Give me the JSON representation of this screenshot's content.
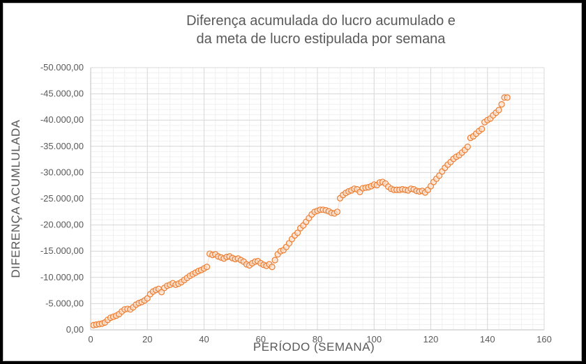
{
  "chart_data": {
    "type": "scatter",
    "title": [
      "Diferença acumulada do lucro acumulado e",
      "da meta de lucro estipulada por semana"
    ],
    "xlabel": "PERÍODO (SEMANA)",
    "ylabel": "DIFERENÇA ACUMLULADA",
    "xlim": [
      0,
      160
    ],
    "ylim": [
      0,
      -50000
    ],
    "x_ticks": [
      0,
      20,
      40,
      60,
      80,
      100,
      120,
      140,
      160
    ],
    "x_tick_labels": [
      "0",
      "20",
      "40",
      "60",
      "80",
      "100",
      "120",
      "140",
      "160"
    ],
    "y_ticks": [
      0,
      -5000,
      -10000,
      -15000,
      -20000,
      -25000,
      -30000,
      -35000,
      -40000,
      -45000,
      -50000
    ],
    "y_tick_labels": [
      "0,00",
      "-5.000,00",
      "-10.000,00",
      "-15.000,00",
      "-20.000,00",
      "-25.000,00",
      "-30.000,00",
      "-35.000,00",
      "-40.000,00",
      "-45.000,00",
      "-50.000,00"
    ],
    "grid": true,
    "marker_color": "#ED7D31",
    "series": [
      {
        "x": [
          1,
          2,
          3,
          4,
          5,
          6,
          7,
          8,
          9,
          10,
          11,
          12,
          13,
          14,
          15,
          16,
          17,
          18,
          19,
          20,
          21,
          22,
          23,
          24,
          25,
          26,
          27,
          28,
          29,
          30,
          31,
          32,
          33,
          34,
          35,
          36,
          37,
          38,
          39,
          40,
          41,
          42,
          43,
          44,
          45,
          46,
          47,
          48,
          49,
          50,
          51,
          52,
          53,
          54,
          55,
          56,
          57,
          58,
          59,
          60,
          61,
          62,
          63,
          64,
          65,
          66,
          67,
          68,
          69,
          70,
          71,
          72,
          73,
          74,
          75,
          76,
          77,
          78,
          79,
          80,
          81,
          82,
          83,
          84,
          85,
          86,
          87,
          88,
          89,
          90,
          91,
          92,
          93,
          94,
          95,
          96,
          97,
          98,
          99,
          100,
          101,
          102,
          103,
          104,
          105,
          106,
          107,
          108,
          109,
          110,
          111,
          112,
          113,
          114,
          115,
          116,
          117,
          118,
          119,
          120,
          121,
          122,
          123,
          124,
          125,
          126,
          127,
          128,
          129,
          130,
          131,
          132,
          133,
          134,
          135,
          136,
          137,
          138,
          139,
          140,
          141,
          142,
          143,
          144,
          145,
          146,
          147
        ],
        "y": [
          -900,
          -1000,
          -1100,
          -1200,
          -1400,
          -1900,
          -2300,
          -2500,
          -2700,
          -3000,
          -3500,
          -3900,
          -4000,
          -3900,
          -4300,
          -4800,
          -5100,
          -5300,
          -5600,
          -6000,
          -6800,
          -7300,
          -7600,
          -7800,
          -7200,
          -8000,
          -8400,
          -8600,
          -8900,
          -8600,
          -8800,
          -9100,
          -9500,
          -9900,
          -10300,
          -10600,
          -10900,
          -11200,
          -11400,
          -11700,
          -12000,
          -14500,
          -14300,
          -14400,
          -14000,
          -13800,
          -13600,
          -13900,
          -14000,
          -13700,
          -13500,
          -13600,
          -13300,
          -13000,
          -12500,
          -12300,
          -12700,
          -13000,
          -13100,
          -12700,
          -12400,
          -12200,
          -12500,
          -12000,
          -13300,
          -14400,
          -15000,
          -15200,
          -15800,
          -16500,
          -17300,
          -18000,
          -18500,
          -19400,
          -19900,
          -20600,
          -21300,
          -22000,
          -22500,
          -22700,
          -22900,
          -22900,
          -22800,
          -22600,
          -22300,
          -22200,
          -22500,
          -25100,
          -25700,
          -26100,
          -26400,
          -26600,
          -26900,
          -26800,
          -26300,
          -27000,
          -27100,
          -27200,
          -27400,
          -27700,
          -27600,
          -28100,
          -28200,
          -27900,
          -27300,
          -26900,
          -26700,
          -26700,
          -26700,
          -26800,
          -26700,
          -26600,
          -26900,
          -26800,
          -26500,
          -26400,
          -26500,
          -26200,
          -26700,
          -27400,
          -28200,
          -28800,
          -29400,
          -30200,
          -30900,
          -31500,
          -32000,
          -32600,
          -33000,
          -33300,
          -33800,
          -34300,
          -34900,
          -36600,
          -36900,
          -37400,
          -37900,
          -38300,
          -39600,
          -40000,
          -40300,
          -40900,
          -41400,
          -41900,
          -43000,
          -44300,
          -44300
        ]
      }
    ]
  }
}
